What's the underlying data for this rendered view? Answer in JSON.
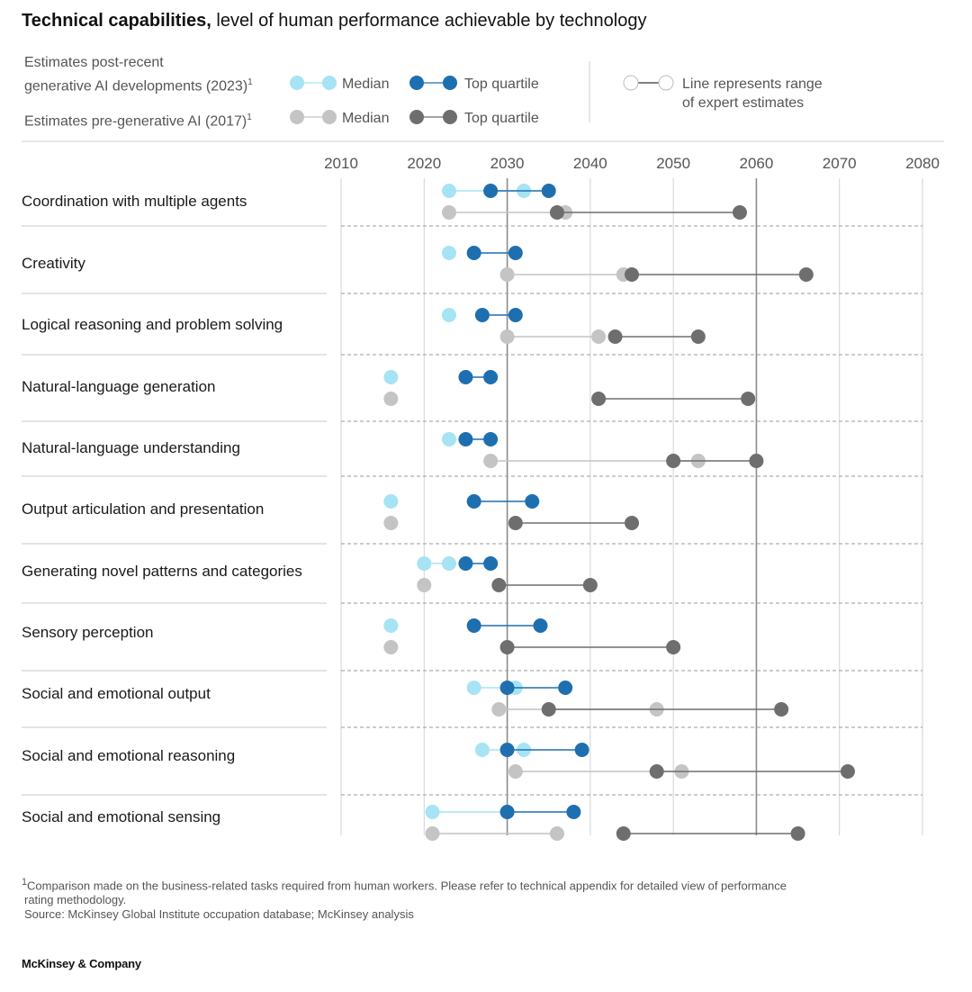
{
  "title": {
    "bold": "Technical capabilities,",
    "rest": " level of human performance achievable by technology"
  },
  "legend": {
    "post_label_line1": "Estimates post-recent",
    "post_label_line2": "generative AI developments (2023)",
    "pre_label": "Estimates pre-generative AI (2017)",
    "footnote_mark": "1",
    "median": "Median",
    "top_quartile": "Top quartile",
    "range_line1": "Line represents range",
    "range_line2": "of expert estimates"
  },
  "colors": {
    "post_median": "#a6e3f4",
    "post_top": "#1e6fb0",
    "pre_median": "#c4c4c4",
    "pre_top": "#6e6e6e"
  },
  "chart_data": {
    "type": "scatter",
    "x_axis_ticks": [
      "2010",
      "2020",
      "2030",
      "2040",
      "2050",
      "2060",
      "2070",
      "2080"
    ],
    "xlim": [
      2010,
      2080
    ],
    "highlight_lines": [
      2030,
      2060
    ],
    "categories": [
      "Coordination with multiple agents",
      "Creativity",
      "Logical reasoning and problem solving",
      "Natural-language generation",
      "Natural-language understanding",
      "Output articulation and presentation",
      "Generating novel patterns and categories",
      "Sensory perception",
      "Social and emotional output",
      "Social and emotional reasoning",
      "Social and emotional sensing"
    ],
    "series": [
      {
        "name": "Estimates post-recent generative AI developments (2023) – Median",
        "range": [
          [
            2023,
            2032
          ],
          [
            2023,
            2023
          ],
          [
            2023,
            2023
          ],
          [
            2016,
            2016
          ],
          [
            2023,
            2023
          ],
          [
            2016,
            2016
          ],
          [
            2020,
            2023
          ],
          [
            2016,
            2016
          ],
          [
            2026,
            2031
          ],
          [
            2027,
            2032
          ],
          [
            2021,
            2030
          ]
        ]
      },
      {
        "name": "Estimates post-recent generative AI developments (2023) – Top quartile",
        "range": [
          [
            2028,
            2035
          ],
          [
            2026,
            2031
          ],
          [
            2027,
            2031
          ],
          [
            2025,
            2028
          ],
          [
            2025,
            2028
          ],
          [
            2026,
            2033
          ],
          [
            2025,
            2028
          ],
          [
            2026,
            2034
          ],
          [
            2030,
            2037
          ],
          [
            2030,
            2039
          ],
          [
            2030,
            2038
          ]
        ]
      },
      {
        "name": "Estimates pre-generative AI (2017) – Median",
        "range": [
          [
            2023,
            2037
          ],
          [
            2030,
            2044
          ],
          [
            2030,
            2041
          ],
          [
            2016,
            2016
          ],
          [
            2028,
            2053
          ],
          [
            2016,
            2016
          ],
          [
            2020,
            2020
          ],
          [
            2016,
            2016
          ],
          [
            2029,
            2048
          ],
          [
            2031,
            2051
          ],
          [
            2021,
            2036
          ]
        ]
      },
      {
        "name": "Estimates pre-generative AI (2017) – Top quartile",
        "range": [
          [
            2036,
            2058
          ],
          [
            2045,
            2066
          ],
          [
            2043,
            2053
          ],
          [
            2041,
            2059
          ],
          [
            2050,
            2060
          ],
          [
            2031,
            2045
          ],
          [
            2029,
            2040
          ],
          [
            2030,
            2050
          ],
          [
            2035,
            2063
          ],
          [
            2048,
            2071
          ],
          [
            2044,
            2065
          ]
        ]
      }
    ]
  },
  "footnote": {
    "line1": "Comparison made on the business-related tasks required from human workers. Please refer to technical appendix for detailed view of performance",
    "line2": "rating methodology.",
    "line3": "Source: McKinsey Global Institute occupation database; McKinsey analysis"
  },
  "brand": "McKinsey & Company"
}
